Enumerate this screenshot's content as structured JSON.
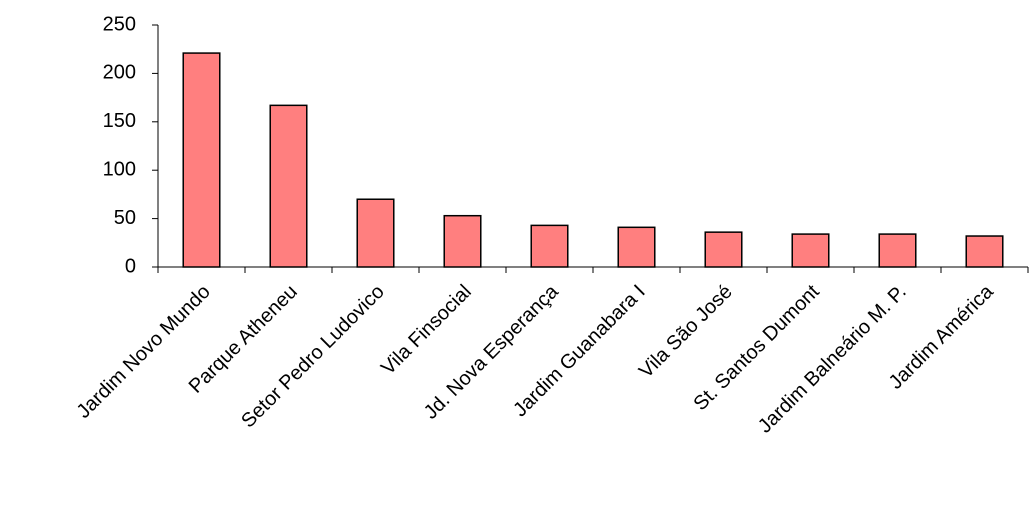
{
  "chart_data": {
    "type": "bar",
    "categories": [
      "Jardim Novo Mundo",
      "Parque Atheneu",
      "Setor Pedro Ludovico",
      "Vila Finsocial",
      "Jd. Nova Esperança",
      "Jardim Guanabara I",
      "Vila São José",
      "St. Santos Dumont",
      "Jardim Balneário M. P.",
      "Jardim América"
    ],
    "values": [
      221,
      167,
      70,
      53,
      43,
      41,
      36,
      34,
      34,
      32
    ],
    "color": "#ff7f7f",
    "ylim": [
      0,
      250
    ],
    "yticks": [
      0,
      50,
      100,
      150,
      200,
      250
    ],
    "grid": false
  }
}
